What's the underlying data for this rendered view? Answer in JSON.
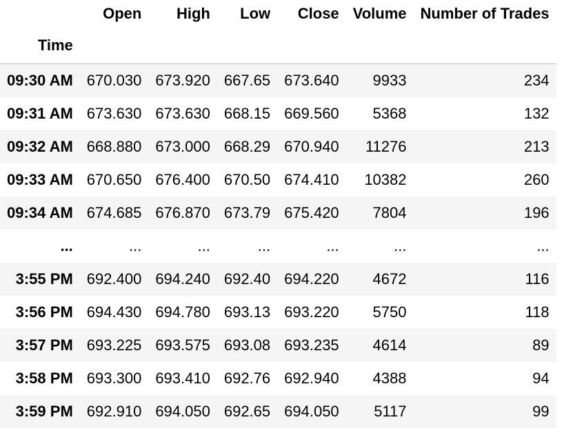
{
  "table": {
    "index_name": "Time",
    "columns": [
      "Open",
      "High",
      "Low",
      "Close",
      "Volume",
      "Number of Trades"
    ],
    "rows": [
      {
        "time": "09:30 AM",
        "values": [
          "670.030",
          "673.920",
          "667.65",
          "673.640",
          "9933",
          "234"
        ]
      },
      {
        "time": "09:31 AM",
        "values": [
          "673.630",
          "673.630",
          "668.15",
          "669.560",
          "5368",
          "132"
        ]
      },
      {
        "time": "09:32 AM",
        "values": [
          "668.880",
          "673.000",
          "668.29",
          "670.940",
          "11276",
          "213"
        ]
      },
      {
        "time": "09:33 AM",
        "values": [
          "670.650",
          "676.400",
          "670.50",
          "674.410",
          "10382",
          "260"
        ]
      },
      {
        "time": "09:34 AM",
        "values": [
          "674.685",
          "676.870",
          "673.79",
          "675.420",
          "7804",
          "196"
        ]
      },
      {
        "time": "...",
        "values": [
          "...",
          "...",
          "...",
          "...",
          "...",
          "..."
        ]
      },
      {
        "time": "3:55 PM",
        "values": [
          "692.400",
          "694.240",
          "692.40",
          "694.220",
          "4672",
          "116"
        ]
      },
      {
        "time": "3:56 PM",
        "values": [
          "694.430",
          "694.780",
          "693.13",
          "693.220",
          "5750",
          "118"
        ]
      },
      {
        "time": "3:57 PM",
        "values": [
          "693.225",
          "693.575",
          "693.08",
          "693.235",
          "4614",
          "89"
        ]
      },
      {
        "time": "3:58 PM",
        "values": [
          "693.300",
          "693.410",
          "692.76",
          "692.940",
          "4388",
          "94"
        ]
      },
      {
        "time": "3:59 PM",
        "values": [
          "692.910",
          "694.050",
          "692.65",
          "694.050",
          "5117",
          "99"
        ]
      }
    ]
  }
}
